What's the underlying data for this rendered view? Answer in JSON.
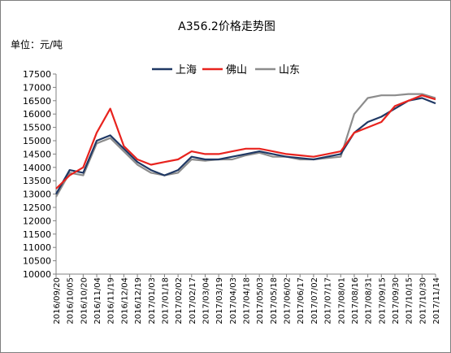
{
  "chart_data": {
    "type": "line",
    "title": "A356.2价格走势图",
    "unit_label": "单位：元/吨",
    "ylim": [
      10000,
      17500
    ],
    "ytick_step": 500,
    "grid": false,
    "legend_position": "top",
    "x": [
      "2016/09/20",
      "2016/10/05",
      "2016/10/20",
      "2016/11/04",
      "2016/11/19",
      "2016/12/04",
      "2016/12/19",
      "2017/01/03",
      "2017/01/18",
      "2017/02/02",
      "2017/02/17",
      "2017/03/04",
      "2017/03/19",
      "2017/04/03",
      "2017/04/18",
      "2017/05/03",
      "2017/05/18",
      "2017/06/02",
      "2017/06/17",
      "2017/07/02",
      "2017/07/17",
      "2017/08/01",
      "2017/08/16",
      "2017/08/31",
      "2017/09/15",
      "2017/09/30",
      "2017/10/15",
      "2017/10/30",
      "2017/11/14"
    ],
    "series": [
      {
        "name": "上海",
        "color": "#1f3864",
        "values": [
          13000,
          13900,
          13800,
          15000,
          15200,
          14700,
          14200,
          13900,
          13700,
          13900,
          14400,
          14300,
          14300,
          14400,
          14500,
          14600,
          14500,
          14400,
          14350,
          14300,
          14400,
          14500,
          15300,
          15700,
          15900,
          16200,
          16500,
          16600,
          16400
        ]
      },
      {
        "name": "佛山",
        "color": "#e8231e",
        "values": [
          13200,
          13700,
          14000,
          15300,
          16200,
          14800,
          14300,
          14100,
          14200,
          14300,
          14600,
          14500,
          14500,
          14600,
          14700,
          14700,
          14600,
          14500,
          14450,
          14400,
          14500,
          14600,
          15300,
          15500,
          15700,
          16300,
          16500,
          16700,
          16550
        ]
      },
      {
        "name": "山东",
        "color": "#8c8c8c",
        "values": [
          12900,
          13800,
          13700,
          14900,
          15100,
          14600,
          14100,
          13800,
          13700,
          13800,
          14300,
          14250,
          14300,
          14300,
          14450,
          14550,
          14400,
          14400,
          14300,
          14300,
          14350,
          14400,
          16000,
          16600,
          16700,
          16700,
          16750,
          16750,
          16600
        ]
      }
    ]
  }
}
